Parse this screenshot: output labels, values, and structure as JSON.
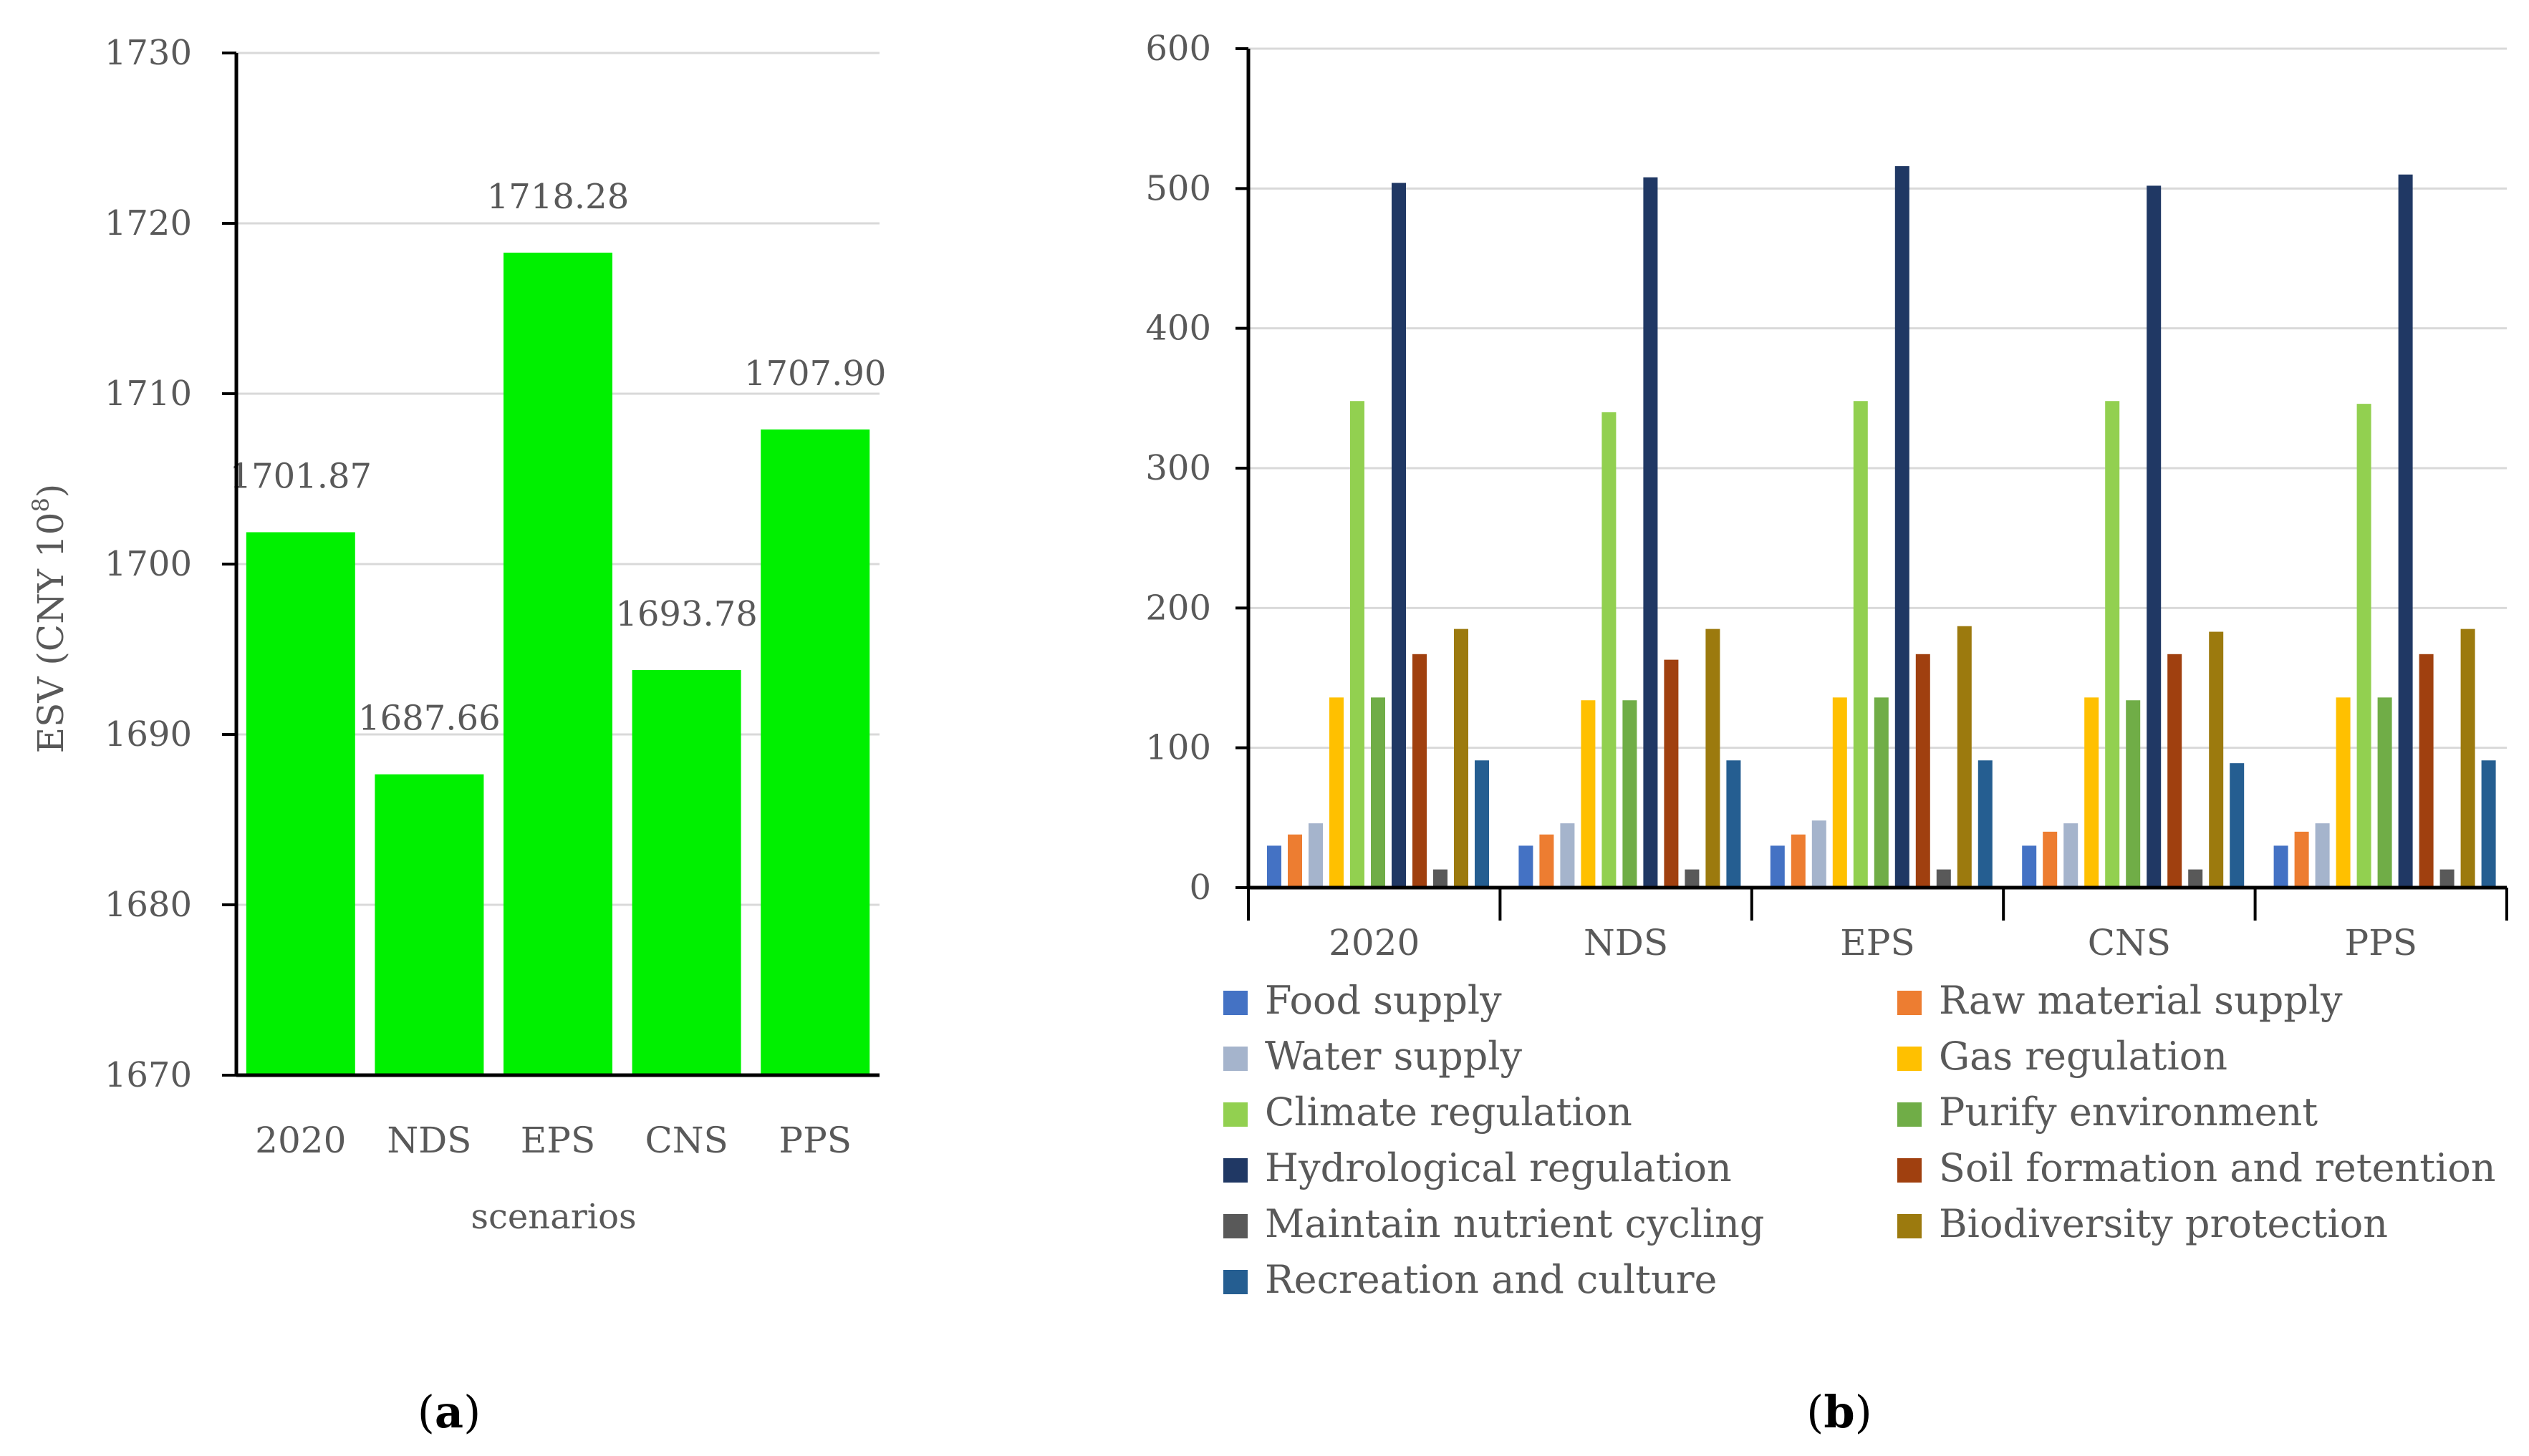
{
  "panels": {
    "a": {
      "label_open": "(",
      "label_letter": "a",
      "label_close": ")"
    },
    "b": {
      "label_open": "(",
      "label_letter": "b",
      "label_close": ")"
    }
  },
  "chart_data": [
    {
      "type": "bar",
      "title": "",
      "xlabel": "scenarios",
      "ylabel_main": "ESV (CNY 10",
      "ylabel_sup": "8",
      "ylabel_close": ")",
      "ylim": [
        1670,
        1730
      ],
      "yticks": [
        1670,
        1680,
        1690,
        1700,
        1710,
        1720,
        1730
      ],
      "categories": [
        "2020",
        "NDS",
        "EPS",
        "CNS",
        "PPS"
      ],
      "values": [
        1701.87,
        1687.66,
        1718.28,
        1693.78,
        1707.9
      ],
      "data_labels": [
        "1701.87",
        "1687.66",
        "1718.28",
        "1693.78",
        "1707.90"
      ],
      "color": "#00F000",
      "grid": true
    },
    {
      "type": "bar",
      "title": "",
      "xlabel": "",
      "ylabel": "",
      "ylim": [
        0,
        600
      ],
      "yticks": [
        0,
        100,
        200,
        300,
        400,
        500,
        600
      ],
      "categories": [
        "2020",
        "NDS",
        "EPS",
        "CNS",
        "PPS"
      ],
      "grid": true,
      "legend_position": "bottom",
      "series": [
        {
          "name": "Food supply",
          "color": "#4472C4",
          "values": [
            30,
            30,
            30,
            30,
            30
          ]
        },
        {
          "name": "Raw material supply",
          "color": "#ED7D31",
          "values": [
            38,
            38,
            38,
            40,
            40
          ]
        },
        {
          "name": "Water supply",
          "color": "#A5B4CC",
          "values": [
            46,
            46,
            48,
            46,
            46
          ]
        },
        {
          "name": "Gas regulation",
          "color": "#FFC000",
          "values": [
            136,
            134,
            136,
            136,
            136
          ]
        },
        {
          "name": "Climate regulation",
          "color": "#92D050",
          "values": [
            348,
            340,
            348,
            348,
            346
          ]
        },
        {
          "name": "Purify environment",
          "color": "#70AD47",
          "values": [
            136,
            134,
            136,
            134,
            136
          ]
        },
        {
          "name": "Hydrological regulation",
          "color": "#203864",
          "values": [
            504,
            508,
            516,
            502,
            510
          ]
        },
        {
          "name": "Soil formation and retention",
          "color": "#A0400F",
          "values": [
            167,
            163,
            167,
            167,
            167
          ]
        },
        {
          "name": "Maintain nutrient cycling",
          "color": "#595959",
          "values": [
            13,
            13,
            13,
            13,
            13
          ]
        },
        {
          "name": "Biodiversity protection",
          "color": "#9C7A0E",
          "values": [
            185,
            185,
            187,
            183,
            185
          ]
        },
        {
          "name": "Recreation and culture",
          "color": "#255E91",
          "values": [
            91,
            91,
            91,
            89,
            91
          ]
        }
      ]
    }
  ]
}
